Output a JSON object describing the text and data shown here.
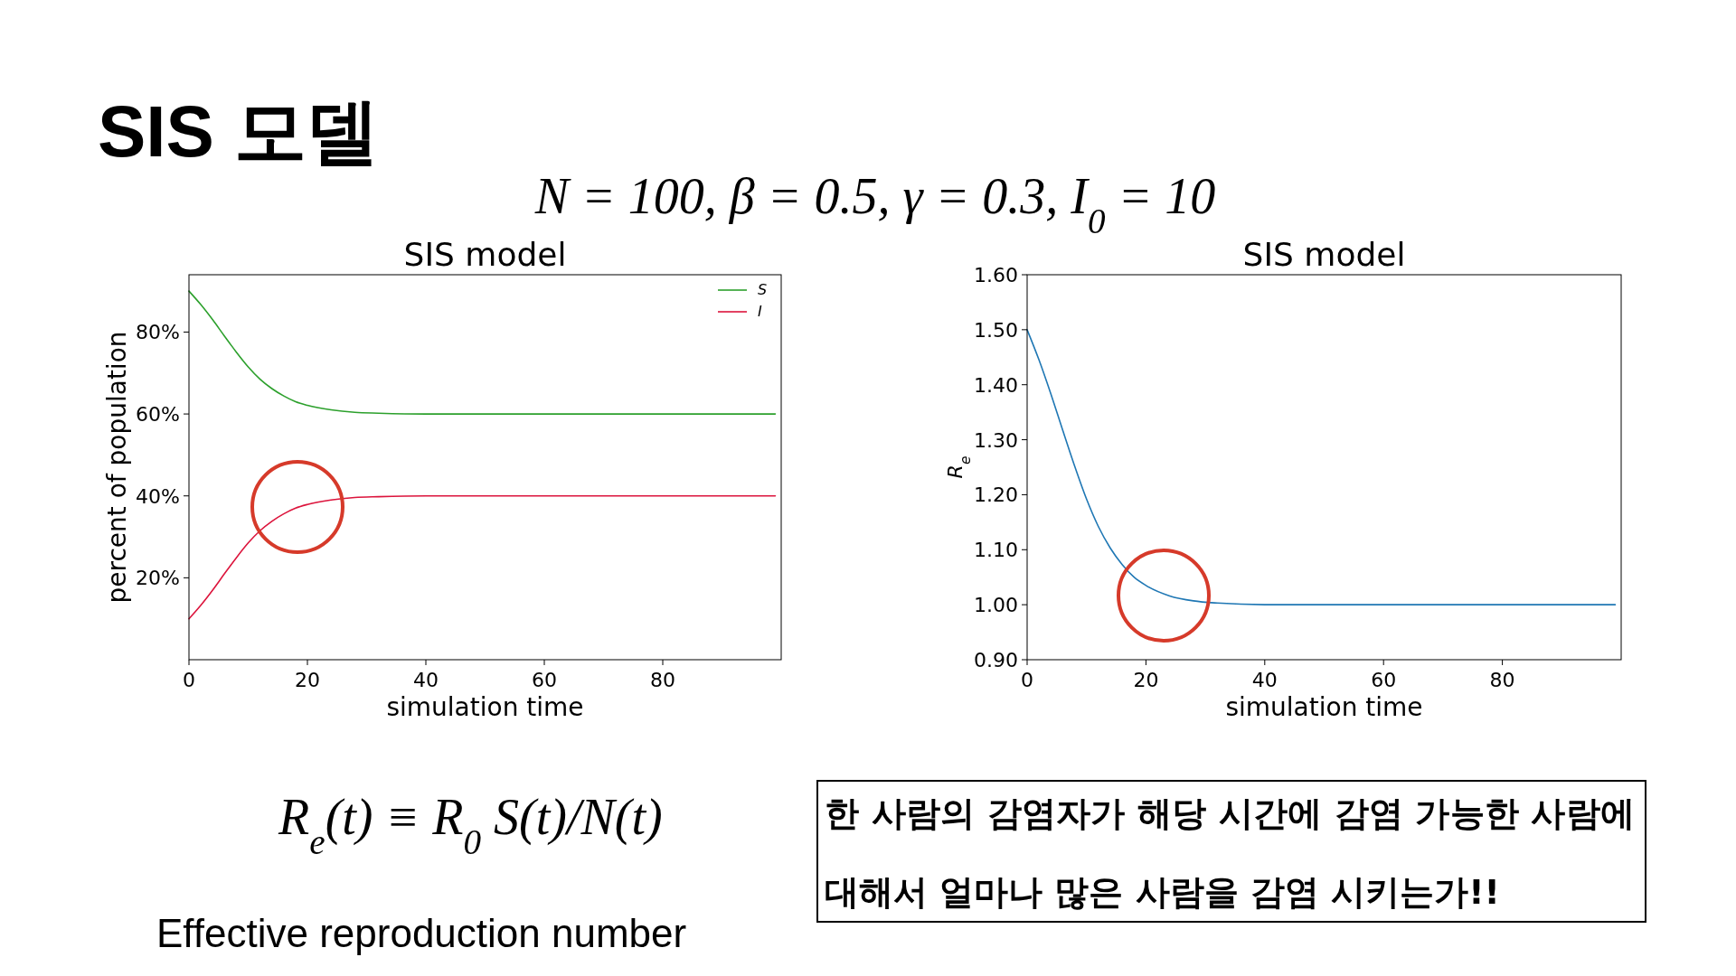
{
  "chart_data": [
    {
      "type": "line",
      "title": "SIS model",
      "xlabel": "simulation time",
      "ylabel": "percent of population",
      "legend": "top right",
      "annotations": [
        "SIS 모델",
        "N = 100,  β = 0.5,  γ = 0.3,  I$_{0}$ = 10",
        "R$_{e}$(t) ≡ R$_{0}$ S(t)/N(t)",
        "Effective reproduction number",
        "한 사람의 감염자가 해당 시간에 감염 가능한 사람에",
        "대해서 얼마나 많은 사람을 감염 시키는가!!"
      ],
      "x": [
        0,
        2,
        4,
        6,
        8,
        10,
        12,
        14,
        16,
        18,
        20,
        24,
        28,
        32,
        40,
        50,
        60,
        70,
        80,
        90,
        99
      ],
      "series": [
        {
          "name": "S",
          "color": "#2ca02c",
          "values": [
            90,
            86.7,
            83.0,
            79.0,
            75.1,
            71.5,
            68.5,
            66.2,
            64.4,
            63.0,
            62.1,
            61.0,
            60.4,
            60.2,
            60.0,
            60.0,
            60.0,
            60.0,
            60.0,
            60.0,
            60.0
          ]
        },
        {
          "name": "I",
          "color": "#dc143c",
          "values": [
            10,
            13.3,
            17.0,
            21.0,
            24.9,
            28.5,
            31.5,
            33.8,
            35.6,
            37.0,
            37.9,
            39.0,
            39.6,
            39.8,
            40.0,
            40.0,
            40.0,
            40.0,
            40.0,
            40.0,
            40.0
          ]
        }
      ],
      "xlim": [
        0,
        100
      ],
      "xticks": [
        0,
        20,
        40,
        60,
        80
      ],
      "ylim": [
        0,
        94
      ],
      "yticks": [
        {
          "value": 20,
          "label": "20%"
        },
        {
          "value": 40,
          "label": "40%"
        },
        {
          "value": 60,
          "label": "60%"
        },
        {
          "value": 80,
          "label": "80%"
        }
      ],
      "grid": false
    },
    {
      "type": "line",
      "title": "SIS model",
      "xlabel": "simulation time",
      "ylabel": "R$_{e}$",
      "legend": false,
      "x": [
        0,
        2,
        4,
        6,
        8,
        10,
        12,
        14,
        16,
        18,
        20,
        24,
        28,
        32,
        40,
        50,
        60,
        70,
        80,
        90,
        99
      ],
      "series": [
        {
          "color": "#1f77b4",
          "values": [
            1.5,
            1.445,
            1.383,
            1.317,
            1.252,
            1.192,
            1.142,
            1.103,
            1.073,
            1.05,
            1.035,
            1.016,
            1.007,
            1.003,
            1.0,
            1.0,
            1.0,
            1.0,
            1.0,
            1.0,
            1.0
          ]
        }
      ],
      "xlim": [
        0,
        100
      ],
      "xticks": [
        0,
        20,
        40,
        60,
        80
      ],
      "ylim": [
        0.9,
        1.6
      ],
      "yticks": [
        {
          "value": 0.9,
          "label": "0.90"
        },
        {
          "value": 1.0,
          "label": "1.00"
        },
        {
          "value": 1.1,
          "label": "1.10"
        },
        {
          "value": 1.2,
          "label": "1.20"
        },
        {
          "value": 1.3,
          "label": "1.30"
        },
        {
          "value": 1.4,
          "label": "1.40"
        },
        {
          "value": 1.5,
          "label": "1.50"
        },
        {
          "value": 1.6,
          "label": "1.60"
        }
      ],
      "grid": false
    }
  ]
}
